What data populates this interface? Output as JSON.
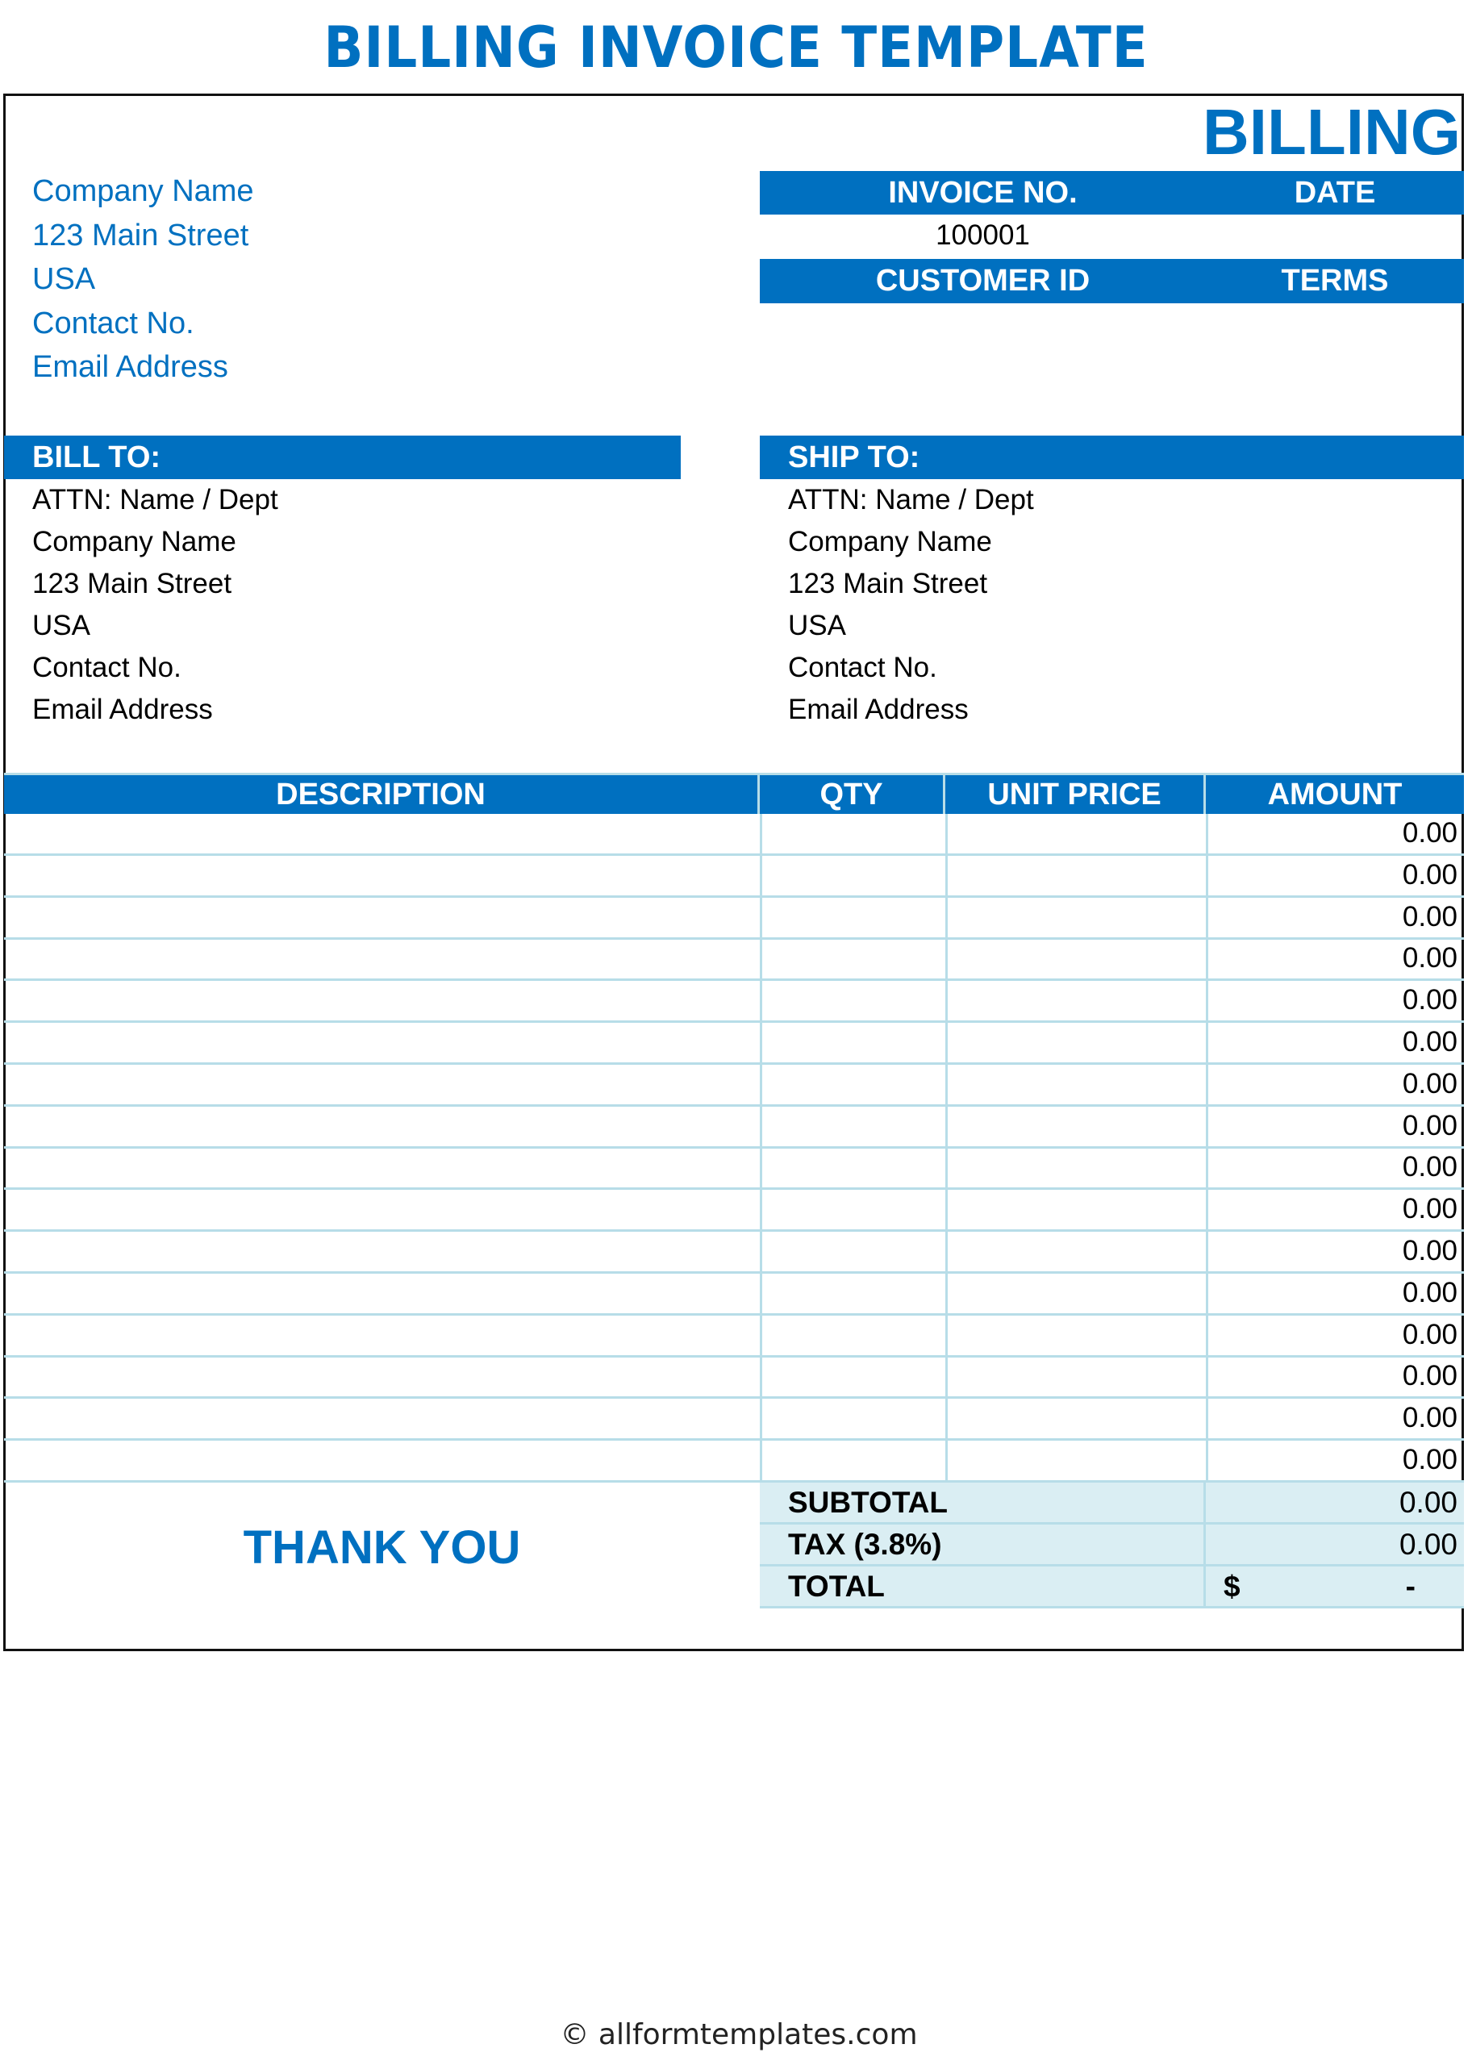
{
  "title": "BILLING INVOICE TEMPLATE",
  "header": {
    "doc_label": "BILLING"
  },
  "sender": {
    "lines": [
      "Company Name",
      "123 Main Street",
      "USA",
      "Contact No.",
      "Email Address"
    ]
  },
  "meta": {
    "invoice_no_label": "INVOICE NO.",
    "date_label": "DATE",
    "invoice_no": "100001",
    "date": "",
    "customer_id_label": "CUSTOMER ID",
    "terms_label": "TERMS"
  },
  "bill_to": {
    "label": "BILL TO:",
    "lines": [
      "ATTN: Name / Dept",
      "Company Name",
      "123 Main Street",
      "USA",
      "Contact No.",
      "Email Address"
    ]
  },
  "ship_to": {
    "label": "SHIP TO:",
    "lines": [
      "ATTN: Name / Dept",
      "Company Name",
      "123 Main Street",
      "USA",
      "Contact No.",
      "Email Address"
    ]
  },
  "table": {
    "columns": [
      "DESCRIPTION",
      "QTY",
      "UNIT PRICE",
      "AMOUNT"
    ],
    "amounts": [
      "0.00",
      "0.00",
      "0.00",
      "0.00",
      "0.00",
      "0.00",
      "0.00",
      "0.00",
      "0.00",
      "0.00",
      "0.00",
      "0.00",
      "0.00",
      "0.00",
      "0.00",
      "0.00"
    ]
  },
  "summary": {
    "subtotal_label": "SUBTOTAL",
    "subtotal": "0.00",
    "tax_label": "TAX (3.8%)",
    "tax": "0.00",
    "total_label": "TOTAL",
    "currency": "$",
    "total": "-"
  },
  "thank_you": "THANK YOU",
  "footer": "© allformtemplates.com",
  "colors": {
    "accent": "#0070C0",
    "light": "#DAEEF3",
    "grid": "#B7DDE8"
  }
}
